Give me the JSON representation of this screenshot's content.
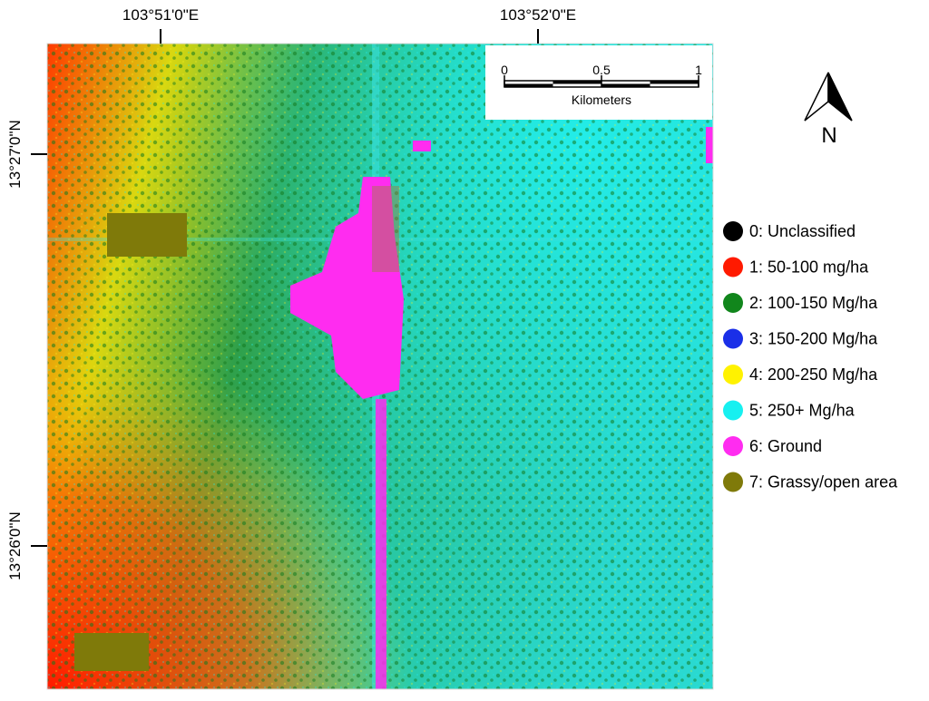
{
  "map": {
    "top_labels": [
      "103°51'0\"E",
      "103°52'0\"E"
    ],
    "left_labels": [
      "13°27'0\"N",
      "13°26'0\"N"
    ],
    "scale_bar": {
      "ticks": [
        0,
        0.5,
        1
      ],
      "unit": "Kilometers"
    },
    "north": "N",
    "legend": [
      {
        "label": "0: Unclassified",
        "color": "#000000"
      },
      {
        "label": "1: 50-100 mg/ha",
        "color": "#ff1a00"
      },
      {
        "label": "2: 100-150 Mg/ha",
        "color": "#11861c"
      },
      {
        "label": "3: 150-200 Mg/ha",
        "color": "#1a2fe8"
      },
      {
        "label": "4: 200-250 Mg/ha",
        "color": "#fff200"
      },
      {
        "label": "5: 250+ Mg/ha",
        "color": "#17f0f0"
      },
      {
        "label": "6: Ground",
        "color": "#ff2cf0"
      },
      {
        "label": "7: Grassy/open area",
        "color": "#7f7a0a"
      }
    ]
  }
}
